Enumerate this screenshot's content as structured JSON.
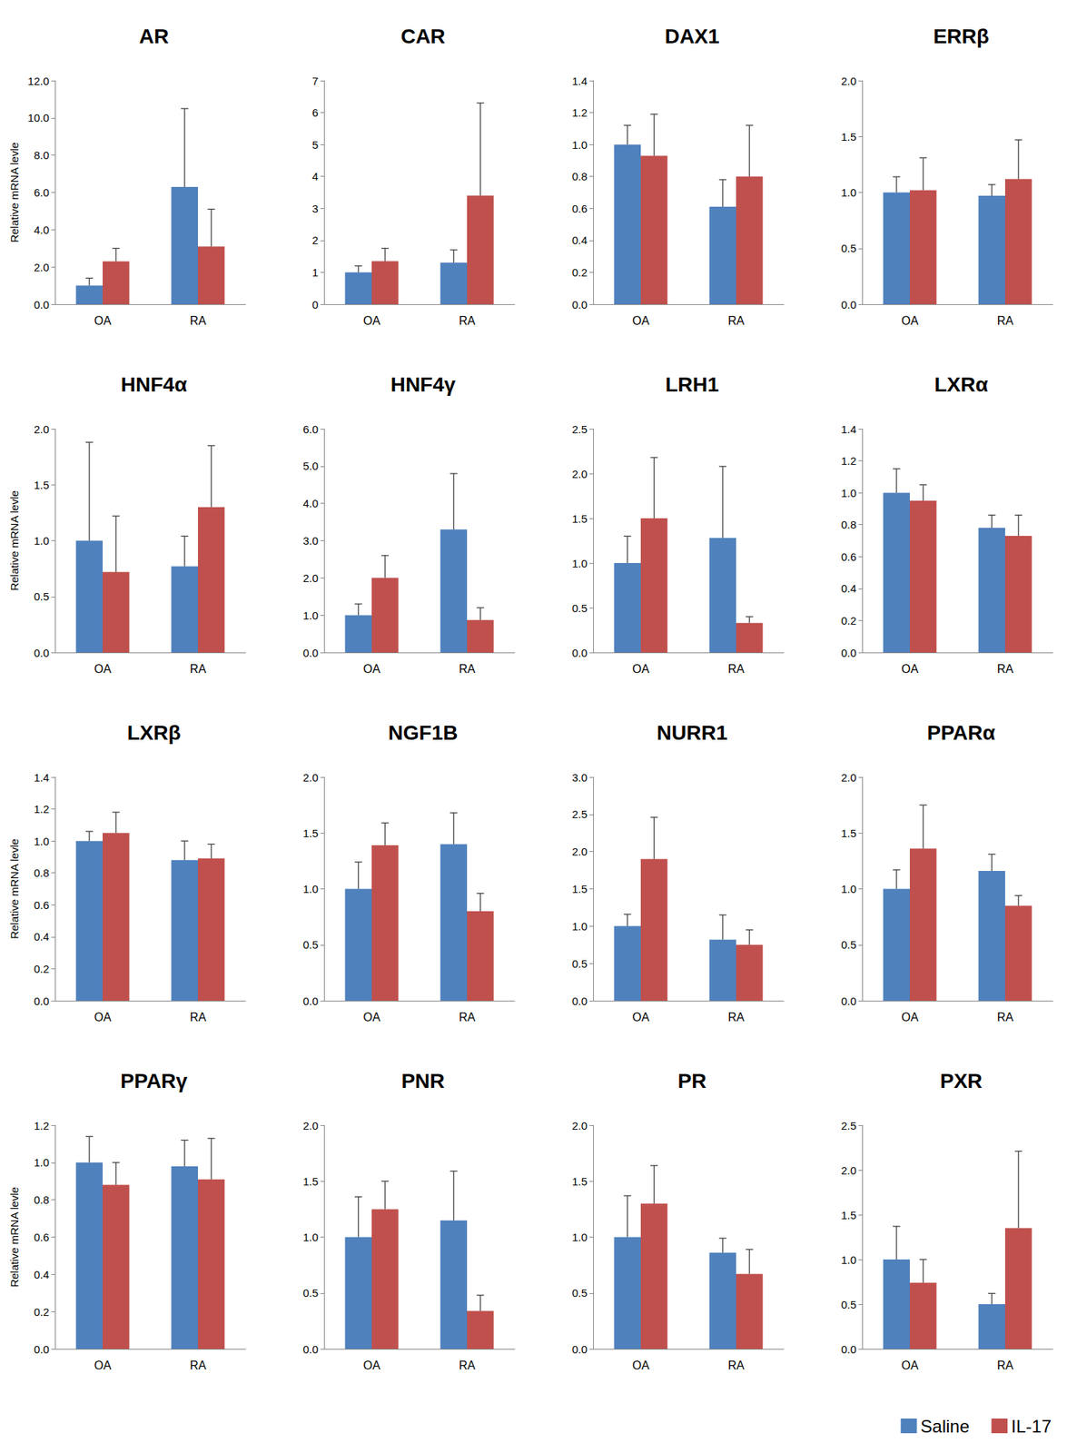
{
  "chart_data": [
    {
      "type": "bar",
      "title": "AR",
      "y_label": "Relative mRNA levle",
      "categories": [
        "OA",
        "RA"
      ],
      "series": [
        {
          "name": "Saline",
          "color": "#4f81bd",
          "values": [
            1.0,
            6.3
          ],
          "errors": [
            0.4,
            4.2
          ]
        },
        {
          "name": "IL-17",
          "color": "#c0504d",
          "values": [
            2.3,
            3.1
          ],
          "errors": [
            0.7,
            2.0
          ]
        }
      ],
      "ylim": [
        0,
        12
      ],
      "yticks": [
        {
          "value": 0,
          "label": "0.0"
        },
        {
          "value": 2,
          "label": "2.0"
        },
        {
          "value": 4,
          "label": "4.0"
        },
        {
          "value": 6,
          "label": "6.0"
        },
        {
          "value": 8,
          "label": "8.0"
        },
        {
          "value": 10,
          "label": "10.0"
        },
        {
          "value": 12,
          "label": "12.0"
        }
      ],
      "grid": false
    },
    {
      "type": "bar",
      "title": "CAR",
      "categories": [
        "OA",
        "RA"
      ],
      "series": [
        {
          "name": "Saline",
          "color": "#4f81bd",
          "values": [
            1.0,
            1.3
          ],
          "errors": [
            0.2,
            0.4
          ]
        },
        {
          "name": "IL-17",
          "color": "#c0504d",
          "values": [
            1.35,
            3.4
          ],
          "errors": [
            0.4,
            2.9
          ]
        }
      ],
      "ylim": [
        0,
        7
      ],
      "yticks": [
        0,
        1,
        2,
        3,
        4,
        5,
        6,
        7
      ],
      "grid": false
    },
    {
      "type": "bar",
      "title": "DAX1",
      "categories": [
        "OA",
        "RA"
      ],
      "series": [
        {
          "name": "Saline",
          "color": "#4f81bd",
          "values": [
            1.0,
            0.61
          ],
          "errors": [
            0.12,
            0.17
          ]
        },
        {
          "name": "IL-17",
          "color": "#c0504d",
          "values": [
            0.93,
            0.8
          ],
          "errors": [
            0.26,
            0.32
          ]
        }
      ],
      "ylim": [
        0,
        1.4
      ],
      "yticks": [
        {
          "value": 0,
          "label": "0.0"
        },
        {
          "value": 0.2,
          "label": "0.2"
        },
        {
          "value": 0.4,
          "label": "0.4"
        },
        {
          "value": 0.6,
          "label": "0.6"
        },
        {
          "value": 0.8,
          "label": "0.8"
        },
        {
          "value": 1,
          "label": "1.0"
        },
        {
          "value": 1.2,
          "label": "1.2"
        },
        {
          "value": 1.4,
          "label": "1.4"
        }
      ],
      "grid": false
    },
    {
      "type": "bar",
      "title": "ERRβ",
      "categories": [
        "OA",
        "RA"
      ],
      "series": [
        {
          "name": "Saline",
          "color": "#4f81bd",
          "values": [
            1.0,
            0.97
          ],
          "errors": [
            0.14,
            0.1
          ]
        },
        {
          "name": "IL-17",
          "color": "#c0504d",
          "values": [
            1.02,
            1.12
          ],
          "errors": [
            0.29,
            0.35
          ]
        }
      ],
      "ylim": [
        0,
        2
      ],
      "yticks": [
        {
          "value": 0,
          "label": "0.0"
        },
        {
          "value": 0.5,
          "label": "0.5"
        },
        {
          "value": 1,
          "label": "1.0"
        },
        {
          "value": 1.5,
          "label": "1.5"
        },
        {
          "value": 2,
          "label": "2.0"
        }
      ],
      "grid": false
    },
    {
      "type": "bar",
      "title": "HNF4α",
      "y_label": "Relative mRNA levle",
      "categories": [
        "OA",
        "RA"
      ],
      "series": [
        {
          "name": "Saline",
          "color": "#4f81bd",
          "values": [
            1.0,
            0.77
          ],
          "errors": [
            0.88,
            0.27
          ]
        },
        {
          "name": "IL-17",
          "color": "#c0504d",
          "values": [
            0.72,
            1.3
          ],
          "errors": [
            0.5,
            0.55
          ]
        }
      ],
      "ylim": [
        0,
        2
      ],
      "yticks": [
        {
          "value": 0,
          "label": "0.0"
        },
        {
          "value": 0.5,
          "label": "0.5"
        },
        {
          "value": 1,
          "label": "1.0"
        },
        {
          "value": 1.5,
          "label": "1.5"
        },
        {
          "value": 2,
          "label": "2.0"
        }
      ],
      "grid": false
    },
    {
      "type": "bar",
      "title": "HNF4γ",
      "categories": [
        "OA",
        "RA"
      ],
      "series": [
        {
          "name": "Saline",
          "color": "#4f81bd",
          "values": [
            1.0,
            3.3
          ],
          "errors": [
            0.3,
            1.5
          ]
        },
        {
          "name": "IL-17",
          "color": "#c0504d",
          "values": [
            2.0,
            0.87
          ],
          "errors": [
            0.6,
            0.33
          ]
        }
      ],
      "ylim": [
        0,
        6
      ],
      "yticks": [
        {
          "value": 0,
          "label": "0.0"
        },
        {
          "value": 1,
          "label": "1.0"
        },
        {
          "value": 2,
          "label": "2.0"
        },
        {
          "value": 3,
          "label": "3.0"
        },
        {
          "value": 4,
          "label": "4.0"
        },
        {
          "value": 5,
          "label": "5.0"
        },
        {
          "value": 6,
          "label": "6.0"
        }
      ],
      "grid": false
    },
    {
      "type": "bar",
      "title": "LRH1",
      "categories": [
        "OA",
        "RA"
      ],
      "series": [
        {
          "name": "Saline",
          "color": "#4f81bd",
          "values": [
            1.0,
            1.28
          ],
          "errors": [
            0.3,
            0.8
          ]
        },
        {
          "name": "IL-17",
          "color": "#c0504d",
          "values": [
            1.5,
            0.33
          ],
          "errors": [
            0.68,
            0.07
          ]
        }
      ],
      "ylim": [
        0,
        2.5
      ],
      "yticks": [
        {
          "value": 0,
          "label": "0.0"
        },
        {
          "value": 0.5,
          "label": "0.5"
        },
        {
          "value": 1,
          "label": "1.0"
        },
        {
          "value": 1.5,
          "label": "1.5"
        },
        {
          "value": 2,
          "label": "2.0"
        },
        {
          "value": 2.5,
          "label": "2.5"
        }
      ],
      "grid": false
    },
    {
      "type": "bar",
      "title": "LXRα",
      "categories": [
        "OA",
        "RA"
      ],
      "series": [
        {
          "name": "Saline",
          "color": "#4f81bd",
          "values": [
            1.0,
            0.78
          ],
          "errors": [
            0.15,
            0.08
          ]
        },
        {
          "name": "IL-17",
          "color": "#c0504d",
          "values": [
            0.95,
            0.73
          ],
          "errors": [
            0.1,
            0.13
          ]
        }
      ],
      "ylim": [
        0,
        1.4
      ],
      "yticks": [
        {
          "value": 0,
          "label": "0.0"
        },
        {
          "value": 0.2,
          "label": "0.2"
        },
        {
          "value": 0.4,
          "label": "0.4"
        },
        {
          "value": 0.6,
          "label": "0.6"
        },
        {
          "value": 0.8,
          "label": "0.8"
        },
        {
          "value": 1,
          "label": "1.0"
        },
        {
          "value": 1.2,
          "label": "1.2"
        },
        {
          "value": 1.4,
          "label": "1.4"
        }
      ],
      "grid": false
    },
    {
      "type": "bar",
      "title": "LXRβ",
      "y_label": "Relative mRNA levle",
      "categories": [
        "OA",
        "RA"
      ],
      "series": [
        {
          "name": "Saline",
          "color": "#4f81bd",
          "values": [
            1.0,
            0.88
          ],
          "errors": [
            0.06,
            0.12
          ]
        },
        {
          "name": "IL-17",
          "color": "#c0504d",
          "values": [
            1.05,
            0.89
          ],
          "errors": [
            0.13,
            0.09
          ]
        }
      ],
      "ylim": [
        0,
        1.4
      ],
      "yticks": [
        {
          "value": 0,
          "label": "0.0"
        },
        {
          "value": 0.2,
          "label": "0.2"
        },
        {
          "value": 0.4,
          "label": "0.4"
        },
        {
          "value": 0.6,
          "label": "0.6"
        },
        {
          "value": 0.8,
          "label": "0.8"
        },
        {
          "value": 1,
          "label": "1.0"
        },
        {
          "value": 1.2,
          "label": "1.2"
        },
        {
          "value": 1.4,
          "label": "1.4"
        }
      ],
      "grid": false
    },
    {
      "type": "bar",
      "title": "NGF1B",
      "categories": [
        "OA",
        "RA"
      ],
      "series": [
        {
          "name": "Saline",
          "color": "#4f81bd",
          "values": [
            1.0,
            1.4
          ],
          "errors": [
            0.24,
            0.28
          ]
        },
        {
          "name": "IL-17",
          "color": "#c0504d",
          "values": [
            1.39,
            0.8
          ],
          "errors": [
            0.2,
            0.16
          ]
        }
      ],
      "ylim": [
        0,
        2
      ],
      "yticks": [
        {
          "value": 0,
          "label": "0.0"
        },
        {
          "value": 0.5,
          "label": "0.5"
        },
        {
          "value": 1,
          "label": "1.0"
        },
        {
          "value": 1.5,
          "label": "1.5"
        },
        {
          "value": 2,
          "label": "2.0"
        }
      ],
      "grid": false
    },
    {
      "type": "bar",
      "title": "NURR1",
      "categories": [
        "OA",
        "RA"
      ],
      "series": [
        {
          "name": "Saline",
          "color": "#4f81bd",
          "values": [
            1.0,
            0.82
          ],
          "errors": [
            0.16,
            0.33
          ]
        },
        {
          "name": "IL-17",
          "color": "#c0504d",
          "values": [
            1.9,
            0.75
          ],
          "errors": [
            0.56,
            0.2
          ]
        }
      ],
      "ylim": [
        0,
        3
      ],
      "yticks": [
        {
          "value": 0,
          "label": "0.0"
        },
        {
          "value": 0.5,
          "label": "0.5"
        },
        {
          "value": 1,
          "label": "1.0"
        },
        {
          "value": 1.5,
          "label": "1.5"
        },
        {
          "value": 2,
          "label": "2.0"
        },
        {
          "value": 2.5,
          "label": "2.5"
        },
        {
          "value": 3,
          "label": "3.0"
        }
      ],
      "grid": false
    },
    {
      "type": "bar",
      "title": "PPARα",
      "categories": [
        "OA",
        "RA"
      ],
      "series": [
        {
          "name": "Saline",
          "color": "#4f81bd",
          "values": [
            1.0,
            1.16
          ],
          "errors": [
            0.17,
            0.15
          ]
        },
        {
          "name": "IL-17",
          "color": "#c0504d",
          "values": [
            1.36,
            0.85
          ],
          "errors": [
            0.39,
            0.09
          ]
        }
      ],
      "ylim": [
        0,
        2
      ],
      "yticks": [
        {
          "value": 0,
          "label": "0.0"
        },
        {
          "value": 0.5,
          "label": "0.5"
        },
        {
          "value": 1,
          "label": "1.0"
        },
        {
          "value": 1.5,
          "label": "1.5"
        },
        {
          "value": 2,
          "label": "2.0"
        }
      ],
      "grid": false
    },
    {
      "type": "bar",
      "title": "PPARγ",
      "y_label": "Relative mRNA levle",
      "categories": [
        "OA",
        "RA"
      ],
      "series": [
        {
          "name": "Saline",
          "color": "#4f81bd",
          "values": [
            1.0,
            0.98
          ],
          "errors": [
            0.14,
            0.14
          ]
        },
        {
          "name": "IL-17",
          "color": "#c0504d",
          "values": [
            0.88,
            0.91
          ],
          "errors": [
            0.12,
            0.22
          ]
        }
      ],
      "ylim": [
        0,
        1.2
      ],
      "yticks": [
        {
          "value": 0,
          "label": "0.0"
        },
        {
          "value": 0.2,
          "label": "0.2"
        },
        {
          "value": 0.4,
          "label": "0.4"
        },
        {
          "value": 0.6,
          "label": "0.6"
        },
        {
          "value": 0.8,
          "label": "0.8"
        },
        {
          "value": 1,
          "label": "1.0"
        },
        {
          "value": 1.2,
          "label": "1.2"
        }
      ],
      "grid": false
    },
    {
      "type": "bar",
      "title": "PNR",
      "categories": [
        "OA",
        "RA"
      ],
      "series": [
        {
          "name": "Saline",
          "color": "#4f81bd",
          "values": [
            1.0,
            1.15
          ],
          "errors": [
            0.36,
            0.44
          ]
        },
        {
          "name": "IL-17",
          "color": "#c0504d",
          "values": [
            1.25,
            0.34
          ],
          "errors": [
            0.25,
            0.14
          ]
        }
      ],
      "ylim": [
        0,
        2
      ],
      "yticks": [
        {
          "value": 0,
          "label": "0.0"
        },
        {
          "value": 0.5,
          "label": "0.5"
        },
        {
          "value": 1,
          "label": "1.0"
        },
        {
          "value": 1.5,
          "label": "1.5"
        },
        {
          "value": 2,
          "label": "2.0"
        }
      ],
      "grid": false
    },
    {
      "type": "bar",
      "title": "PR",
      "categories": [
        "OA",
        "RA"
      ],
      "series": [
        {
          "name": "Saline",
          "color": "#4f81bd",
          "values": [
            1.0,
            0.86
          ],
          "errors": [
            0.37,
            0.13
          ]
        },
        {
          "name": "IL-17",
          "color": "#c0504d",
          "values": [
            1.3,
            0.67
          ],
          "errors": [
            0.34,
            0.22
          ]
        }
      ],
      "ylim": [
        0,
        2
      ],
      "yticks": [
        {
          "value": 0,
          "label": "0.0"
        },
        {
          "value": 0.5,
          "label": "0.5"
        },
        {
          "value": 1,
          "label": "1.0"
        },
        {
          "value": 1.5,
          "label": "1.5"
        },
        {
          "value": 2,
          "label": "2.0"
        }
      ],
      "grid": false
    },
    {
      "type": "bar",
      "title": "PXR",
      "categories": [
        "OA",
        "RA"
      ],
      "series": [
        {
          "name": "Saline",
          "color": "#4f81bd",
          "values": [
            1.0,
            0.5
          ],
          "errors": [
            0.37,
            0.12
          ]
        },
        {
          "name": "IL-17",
          "color": "#c0504d",
          "values": [
            0.74,
            1.35
          ],
          "errors": [
            0.26,
            0.86
          ]
        }
      ],
      "ylim": [
        0,
        2.5
      ],
      "yticks": [
        {
          "value": 0,
          "label": "0.0"
        },
        {
          "value": 0.5,
          "label": "0.5"
        },
        {
          "value": 1,
          "label": "1.0"
        },
        {
          "value": 1.5,
          "label": "1.5"
        },
        {
          "value": 2,
          "label": "2.0"
        },
        {
          "value": 2.5,
          "label": "2.5"
        }
      ],
      "grid": false,
      "legend": "bottom right"
    }
  ]
}
